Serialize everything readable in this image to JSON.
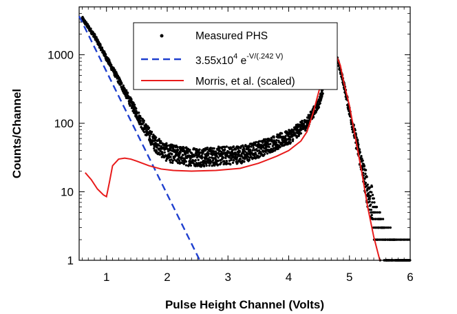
{
  "chart_data": {
    "type": "scatter",
    "title": "",
    "xlabel": "Pulse Height Channel (Volts)",
    "ylabel": "Counts/Channel",
    "xlim": [
      0.55,
      6.0
    ],
    "ylim": [
      1,
      5000
    ],
    "yscale": "log",
    "grid": false,
    "legend_position": "top-center",
    "x_ticks": [
      1,
      2,
      3,
      4,
      5,
      6
    ],
    "x_tick_labels": [
      "1",
      "2",
      "3",
      "4",
      "5",
      "6"
    ],
    "y_ticks": [
      1,
      10,
      100,
      1000
    ],
    "y_tick_labels": [
      "1",
      "10",
      "100",
      "1000"
    ],
    "legend": {
      "measured": "Measured PHS",
      "fit_base": "3.55x10",
      "fit_exp1": "4",
      "fit_mid": " e",
      "fit_exp2": "-V/(.242 V)",
      "morris": "Morris, et al. (scaled)"
    },
    "series": [
      {
        "name": "Measured PHS",
        "kind": "points",
        "color": "#000000",
        "profile": [
          [
            0.6,
            3400
          ],
          [
            0.8,
            1900
          ],
          [
            1.0,
            900
          ],
          [
            1.2,
            430
          ],
          [
            1.4,
            200
          ],
          [
            1.6,
            95
          ],
          [
            1.8,
            50
          ],
          [
            2.0,
            37
          ],
          [
            2.3,
            33
          ],
          [
            2.6,
            32
          ],
          [
            3.0,
            34
          ],
          [
            3.3,
            36
          ],
          [
            3.6,
            45
          ],
          [
            4.0,
            62
          ],
          [
            4.3,
            100
          ],
          [
            4.5,
            200
          ],
          [
            4.6,
            400
          ],
          [
            4.7,
            800
          ],
          [
            4.75,
            1000
          ],
          [
            4.8,
            850
          ],
          [
            4.9,
            400
          ],
          [
            5.0,
            150
          ],
          [
            5.1,
            60
          ],
          [
            5.2,
            25
          ],
          [
            5.3,
            10
          ],
          [
            5.4,
            5
          ],
          [
            5.5,
            3
          ],
          [
            5.6,
            2
          ],
          [
            5.7,
            1.5
          ],
          [
            5.8,
            1.2
          ],
          [
            6.0,
            1
          ]
        ]
      },
      {
        "name": "3.55x10^4 e^-V/(.242 V)",
        "kind": "dashed-line",
        "color": "#1e3fcf",
        "amplitude": 35500,
        "decay_volts": 0.242,
        "x_range": [
          0.55,
          2.6
        ]
      },
      {
        "name": "Morris, et al. (scaled)",
        "kind": "line",
        "color": "#e81a1a",
        "x": [
          0.65,
          0.75,
          0.85,
          0.95,
          1.0,
          1.05,
          1.1,
          1.2,
          1.3,
          1.4,
          1.5,
          1.7,
          1.9,
          2.1,
          2.4,
          2.8,
          3.2,
          3.5,
          3.8,
          4.0,
          4.2,
          4.3,
          4.4,
          4.5,
          4.6,
          4.65,
          4.7,
          4.75,
          4.8,
          4.85,
          4.9,
          5.0,
          5.1,
          5.2,
          5.3,
          5.4,
          5.5
        ],
        "y": [
          19,
          15,
          11,
          9,
          8.5,
          14,
          24,
          30,
          31,
          30,
          28,
          24,
          21.5,
          20.5,
          20,
          20.5,
          22,
          26,
          33,
          40,
          55,
          75,
          140,
          300,
          600,
          800,
          950,
          1000,
          900,
          700,
          420,
          180,
          60,
          20,
          6,
          2.2,
          1
        ]
      }
    ]
  }
}
